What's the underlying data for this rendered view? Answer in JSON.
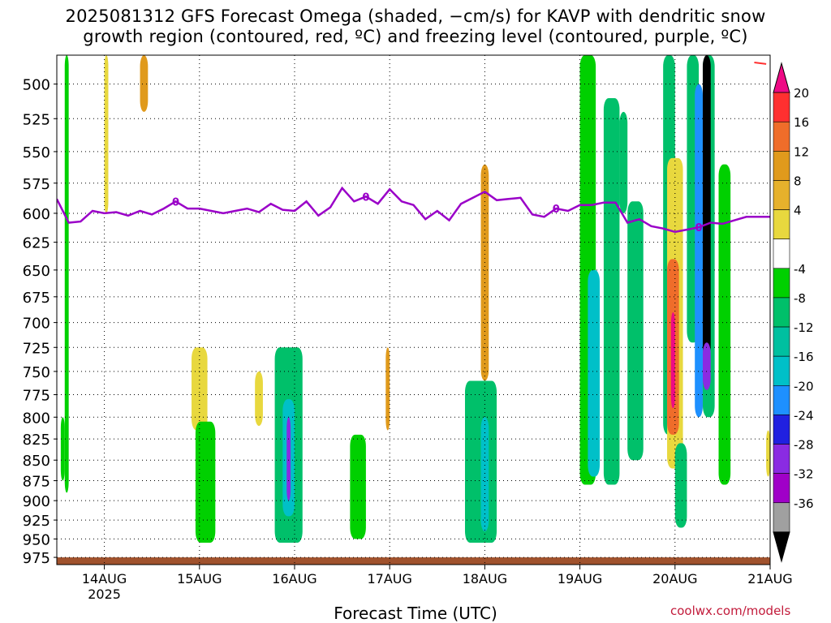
{
  "title": {
    "line1": "2025081312 GFS Forecast Omega (shaded, −cm/s) for KAVP with dendritic snow",
    "line2": "growth region (contoured, red, ºC) and freezing level (contoured, purple, ºC)"
  },
  "credit": "coolwx.com/models",
  "chart_data": {
    "type": "heatmap",
    "xlabel": "Forecast Time (UTC)",
    "x_ticks": [
      "14AUG",
      "15AUG",
      "16AUG",
      "17AUG",
      "18AUG",
      "19AUG",
      "20AUG",
      "21AUG"
    ],
    "x_tick_sublabel": "2025",
    "xlim": [
      "2025-08-13T12",
      "2025-08-21T00"
    ],
    "y_ticks": [
      500,
      525,
      550,
      575,
      600,
      625,
      650,
      675,
      700,
      725,
      750,
      775,
      800,
      825,
      850,
      875,
      900,
      925,
      950,
      975
    ],
    "ylim": [
      480,
      985
    ],
    "y_scale": "log",
    "grid": true,
    "colorbar": {
      "ticks": [
        20,
        16,
        12,
        8,
        4,
        -4,
        -8,
        -12,
        -16,
        -20,
        -24,
        -28,
        -32,
        -36
      ],
      "colors": [
        "#ee0a85",
        "#ff3030",
        "#ef6d2a",
        "#e09a1c",
        "#e6b12c",
        "#e8d83e",
        "#ffffff",
        "#00d000",
        "#00c06a",
        "#00c0a0",
        "#00c0c8",
        "#1e90ff",
        "#2020e0",
        "#8a2be2",
        "#a000c8",
        "#a0a0a0",
        "#000000"
      ]
    },
    "freezing_level": {
      "label": "0",
      "color": "#9a00c8",
      "points": [
        [
          "2025-08-13T12",
          588
        ],
        [
          "2025-08-13T15",
          608
        ],
        [
          "2025-08-13T18",
          607
        ],
        [
          "2025-08-13T21",
          598
        ],
        [
          "2025-08-14T00",
          600
        ],
        [
          "2025-08-14T03",
          599
        ],
        [
          "2025-08-14T06",
          602
        ],
        [
          "2025-08-14T09",
          598
        ],
        [
          "2025-08-14T12",
          601
        ],
        [
          "2025-08-14T15",
          596
        ],
        [
          "2025-08-14T18",
          590
        ],
        [
          "2025-08-14T21",
          596
        ],
        [
          "2025-08-15T00",
          596
        ],
        [
          "2025-08-15T03",
          598
        ],
        [
          "2025-08-15T06",
          600
        ],
        [
          "2025-08-15T09",
          598
        ],
        [
          "2025-08-15T12",
          596
        ],
        [
          "2025-08-15T15",
          599
        ],
        [
          "2025-08-15T18",
          592
        ],
        [
          "2025-08-15T21",
          597
        ],
        [
          "2025-08-16T00",
          598
        ],
        [
          "2025-08-16T03",
          590
        ],
        [
          "2025-08-16T06",
          602
        ],
        [
          "2025-08-16T09",
          595
        ],
        [
          "2025-08-16T12",
          579
        ],
        [
          "2025-08-16T15",
          590
        ],
        [
          "2025-08-16T18",
          586
        ],
        [
          "2025-08-16T21",
          592
        ],
        [
          "2025-08-17T00",
          580
        ],
        [
          "2025-08-17T03",
          590
        ],
        [
          "2025-08-17T06",
          593
        ],
        [
          "2025-08-17T09",
          605
        ],
        [
          "2025-08-17T12",
          598
        ],
        [
          "2025-08-17T15",
          606
        ],
        [
          "2025-08-17T18",
          592
        ],
        [
          "2025-08-17T21",
          587
        ],
        [
          "2025-08-18T00",
          582
        ],
        [
          "2025-08-18T03",
          589
        ],
        [
          "2025-08-18T06",
          588
        ],
        [
          "2025-08-18T09",
          587
        ],
        [
          "2025-08-18T12",
          601
        ],
        [
          "2025-08-18T15",
          603
        ],
        [
          "2025-08-18T18",
          596
        ],
        [
          "2025-08-18T21",
          598
        ],
        [
          "2025-08-19T00",
          593
        ],
        [
          "2025-08-19T03",
          593
        ],
        [
          "2025-08-19T06",
          591
        ],
        [
          "2025-08-19T09",
          591
        ],
        [
          "2025-08-19T12",
          608
        ],
        [
          "2025-08-19T15",
          605
        ],
        [
          "2025-08-19T18",
          611
        ],
        [
          "2025-08-19T21",
          613
        ],
        [
          "2025-08-20T00",
          616
        ],
        [
          "2025-08-20T03",
          614
        ],
        [
          "2025-08-20T06",
          612
        ],
        [
          "2025-08-20T09",
          608
        ],
        [
          "2025-08-20T12",
          609
        ],
        [
          "2025-08-20T15",
          606
        ],
        [
          "2025-08-20T18",
          603
        ],
        [
          "2025-08-20T21",
          603
        ],
        [
          "2025-08-21T00",
          603
        ]
      ]
    },
    "dendritic_growth_contour": {
      "color": "#ff3030",
      "points": [
        [
          "2025-08-20T20",
          485
        ],
        [
          "2025-08-20T23",
          486
        ]
      ]
    },
    "omega_features": [
      {
        "x": [
          "2025-08-13T14",
          "2025-08-13T15"
        ],
        "p": [
          480,
          890
        ],
        "value": -6
      },
      {
        "x": [
          "2025-08-13T13",
          "2025-08-13T14"
        ],
        "p": [
          800,
          875
        ],
        "value": -6
      },
      {
        "x": [
          "2025-08-14T00",
          "2025-08-14T01"
        ],
        "p": [
          480,
          600
        ],
        "value": 5
      },
      {
        "x": [
          "2025-08-14T09",
          "2025-08-14T11"
        ],
        "p": [
          480,
          520
        ],
        "value": 10
      },
      {
        "x": [
          "2025-08-14T22",
          "2025-08-15T02"
        ],
        "p": [
          725,
          815
        ],
        "value": 5
      },
      {
        "x": [
          "2025-08-14T23",
          "2025-08-15T04"
        ],
        "p": [
          805,
          955
        ],
        "value": -7
      },
      {
        "x": [
          "2025-08-15T14",
          "2025-08-15T16"
        ],
        "p": [
          750,
          810
        ],
        "value": 5
      },
      {
        "x": [
          "2025-08-15T19",
          "2025-08-16T02"
        ],
        "p": [
          725,
          955
        ],
        "value": -8
      },
      {
        "x": [
          "2025-08-15T21",
          "2025-08-16T00"
        ],
        "p": [
          780,
          920
        ],
        "value": -14
      },
      {
        "x": [
          "2025-08-15T22",
          "2025-08-15T23"
        ],
        "p": [
          800,
          900
        ],
        "value": -26
      },
      {
        "x": [
          "2025-08-16T14",
          "2025-08-16T18"
        ],
        "p": [
          820,
          950
        ],
        "value": -6
      },
      {
        "x": [
          "2025-08-16T23",
          "2025-08-17T00"
        ],
        "p": [
          725,
          815
        ],
        "value": 10
      },
      {
        "x": [
          "2025-08-17T19",
          "2025-08-18T03"
        ],
        "p": [
          760,
          955
        ],
        "value": -8
      },
      {
        "x": [
          "2025-08-17T23",
          "2025-08-18T01"
        ],
        "p": [
          800,
          940
        ],
        "value": -14
      },
      {
        "x": [
          "2025-08-17T23",
          "2025-08-18T01"
        ],
        "p": [
          560,
          760
        ],
        "value": 10
      },
      {
        "x": [
          "2025-08-19T00",
          "2025-08-19T04"
        ],
        "p": [
          480,
          880
        ],
        "value": -6
      },
      {
        "x": [
          "2025-08-19T02",
          "2025-08-19T05"
        ],
        "p": [
          650,
          870
        ],
        "value": -14
      },
      {
        "x": [
          "2025-08-19T06",
          "2025-08-19T10"
        ],
        "p": [
          510,
          880
        ],
        "value": -8
      },
      {
        "x": [
          "2025-08-19T10",
          "2025-08-19T12"
        ],
        "p": [
          520,
          600
        ],
        "value": -10
      },
      {
        "x": [
          "2025-08-19T12",
          "2025-08-19T16"
        ],
        "p": [
          590,
          850
        ],
        "value": -10
      },
      {
        "x": [
          "2025-08-19T21",
          "2025-08-20T00"
        ],
        "p": [
          480,
          820
        ],
        "value": -8
      },
      {
        "x": [
          "2025-08-19T22",
          "2025-08-20T02"
        ],
        "p": [
          555,
          860
        ],
        "value": 5
      },
      {
        "x": [
          "2025-08-19T22",
          "2025-08-20T01"
        ],
        "p": [
          640,
          820
        ],
        "value": 14
      },
      {
        "x": [
          "2025-08-19T23",
          "2025-08-20T00"
        ],
        "p": [
          690,
          790
        ],
        "value": 20
      },
      {
        "x": [
          "2025-08-20T00",
          "2025-08-20T03"
        ],
        "p": [
          830,
          935
        ],
        "value": -10
      },
      {
        "x": [
          "2025-08-20T03",
          "2025-08-20T06"
        ],
        "p": [
          480,
          720
        ],
        "value": -10
      },
      {
        "x": [
          "2025-08-20T05",
          "2025-08-20T07"
        ],
        "p": [
          500,
          800
        ],
        "value": -16
      },
      {
        "x": [
          "2025-08-20T07",
          "2025-08-20T10"
        ],
        "p": [
          480,
          800
        ],
        "value": -8
      },
      {
        "x": [
          "2025-08-20T07",
          "2025-08-20T09"
        ],
        "p": [
          480,
          735
        ],
        "value": -40
      },
      {
        "x": [
          "2025-08-20T07",
          "2025-08-20T09"
        ],
        "p": [
          720,
          770
        ],
        "value": -24
      },
      {
        "x": [
          "2025-08-20T11",
          "2025-08-20T14"
        ],
        "p": [
          560,
          880
        ],
        "value": -7
      },
      {
        "x": [
          "2025-08-20T23",
          "2025-08-21T00"
        ],
        "p": [
          815,
          870
        ],
        "value": 5
      }
    ],
    "surface_band": {
      "color": "#a0522d",
      "p": [
        975,
        985
      ]
    }
  }
}
